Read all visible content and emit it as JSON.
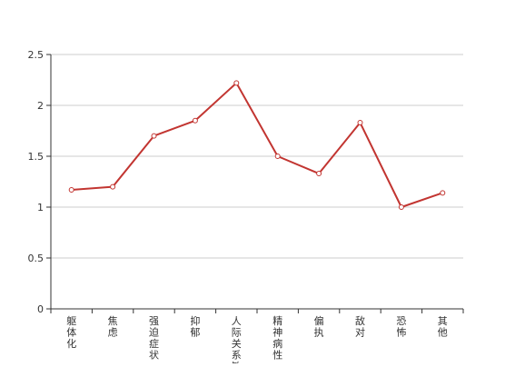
{
  "chart_data": {
    "type": "line",
    "title": "",
    "xlabel": "",
    "ylabel": "",
    "categories": [
      "躯体化",
      "焦虑",
      "强迫症状",
      "抑郁",
      "人际关系敏感",
      "精神病性",
      "偏执",
      "敌对",
      "恐怖",
      "其他"
    ],
    "series": [
      {
        "values": [
          1.17,
          1.2,
          1.7,
          1.85,
          2.22,
          1.5,
          1.33,
          1.83,
          1.0,
          1.14
        ]
      }
    ],
    "ylim": [
      0,
      2.5
    ],
    "yticks": [
      0,
      0.5,
      1,
      1.5,
      2,
      2.5
    ],
    "ytick_labels": [
      "0",
      "0.5",
      "1",
      "1.5",
      "2",
      "2.5"
    ],
    "grid": true,
    "legend": "none",
    "colors": {
      "line": "#c23531",
      "grid": "#cccccc",
      "axis": "#333333",
      "marker_fill": "#ffffff"
    }
  }
}
